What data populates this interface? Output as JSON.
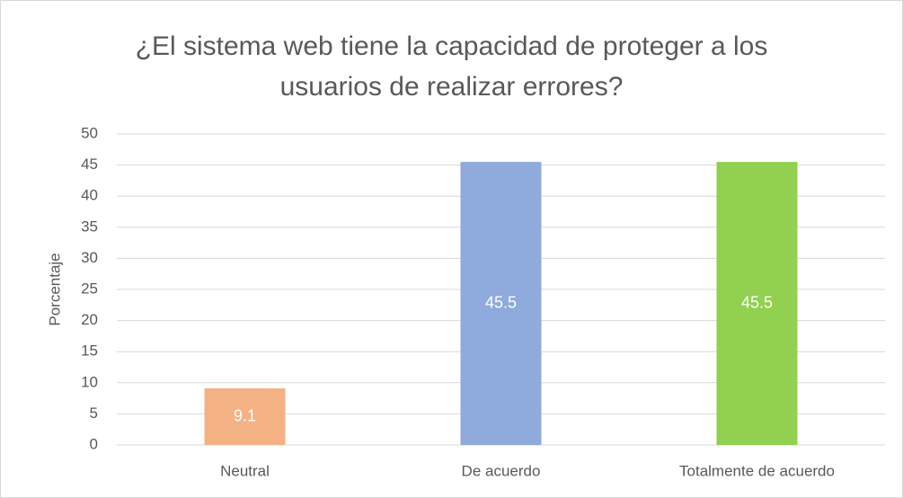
{
  "chart_data": {
    "type": "bar",
    "title": "¿El sistema web tiene la capacidad de proteger a los usuarios de realizar errores?",
    "y_label": "Porcentaje",
    "categories": [
      "Neutral",
      "De acuerdo",
      "Totalmente de acuerdo"
    ],
    "values": [
      9.1,
      45.5,
      45.5
    ],
    "colors": [
      "#f4b183",
      "#8faadc",
      "#92d050"
    ],
    "ylim": [
      0,
      50
    ],
    "yticks": [
      0,
      5,
      10,
      15,
      20,
      25,
      30,
      35,
      40,
      45,
      50
    ],
    "grid": true
  }
}
